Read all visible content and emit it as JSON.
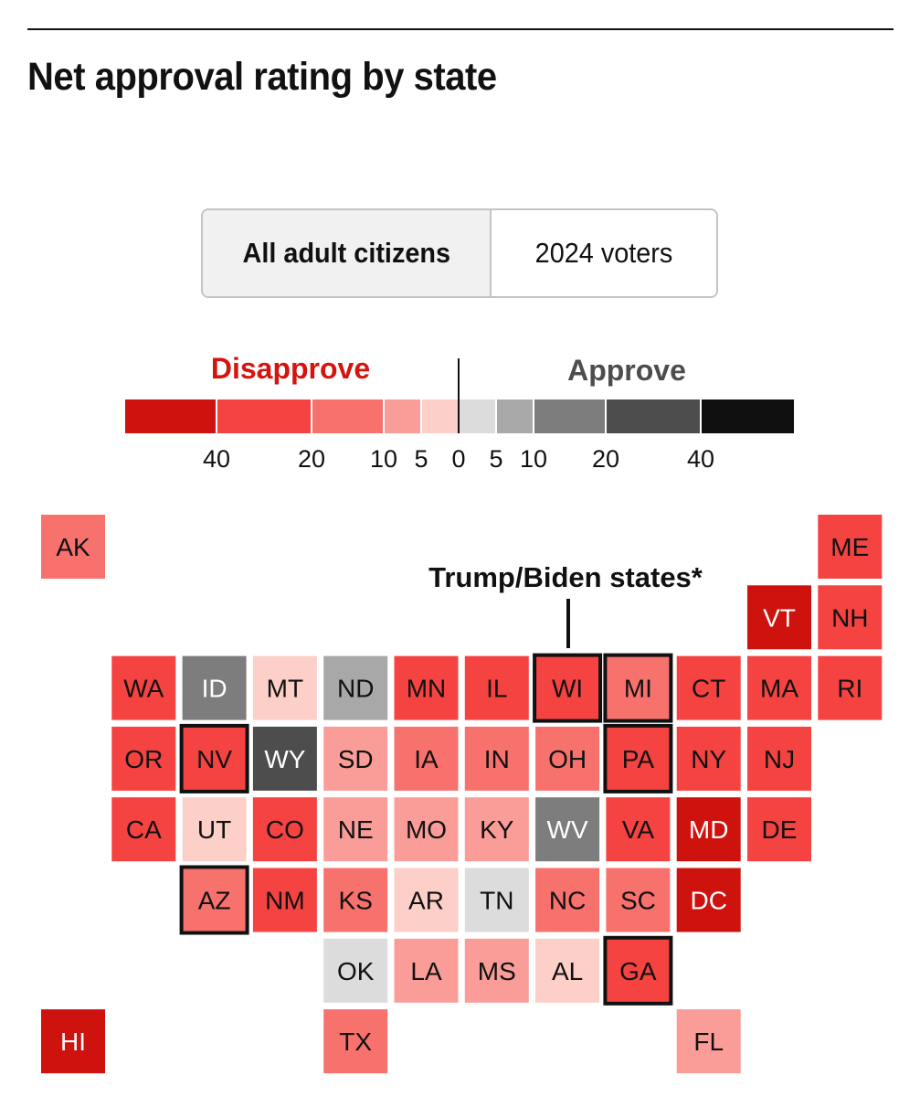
{
  "header": {
    "title": "Net approval rating by state"
  },
  "toggle": {
    "options": [
      {
        "label": "All adult citizens",
        "selected": true
      },
      {
        "label": "2024 voters",
        "selected": false
      }
    ]
  },
  "legend": {
    "disapprove_label": "Disapprove",
    "approve_label": "Approve",
    "disapprove_color": "#d4140f",
    "approve_color": "#4d4d4d",
    "bins": [
      {
        "from": -60,
        "to": -40,
        "color": "#ce120e"
      },
      {
        "from": -40,
        "to": -20,
        "color": "#f44341"
      },
      {
        "from": -20,
        "to": -10,
        "color": "#f7716d"
      },
      {
        "from": -10,
        "to": -5,
        "color": "#fa9d98"
      },
      {
        "from": -5,
        "to": 0,
        "color": "#fccfc9"
      },
      {
        "from": 0,
        "to": 5,
        "color": "#dcdcdc"
      },
      {
        "from": 5,
        "to": 10,
        "color": "#a8a8a8"
      },
      {
        "from": 10,
        "to": 20,
        "color": "#7d7d7d"
      },
      {
        "from": 20,
        "to": 40,
        "color": "#4d4d4d"
      },
      {
        "from": 40,
        "to": 60,
        "color": "#0f0f0f"
      }
    ],
    "ticks": [
      {
        "value": -40,
        "label": "40"
      },
      {
        "value": -20,
        "label": "20"
      },
      {
        "value": -10,
        "label": "10"
      },
      {
        "value": -5,
        "label": "5"
      },
      {
        "value": 0,
        "label": "0"
      },
      {
        "value": 5,
        "label": "5"
      },
      {
        "value": 10,
        "label": "10"
      },
      {
        "value": 20,
        "label": "20"
      },
      {
        "value": 40,
        "label": "40"
      }
    ]
  },
  "annotation": {
    "label": "Trump/Biden states*"
  },
  "chart_data": {
    "type": "heatmap",
    "title": "Net approval rating by state",
    "scale_unit": "net approval (points)",
    "states": [
      {
        "abbr": "AK",
        "row": 0,
        "col": 0,
        "bin": -20,
        "highlight": false
      },
      {
        "abbr": "ME",
        "row": 0,
        "col": 11,
        "bin": -40,
        "highlight": false
      },
      {
        "abbr": "VT",
        "row": 1,
        "col": 10,
        "bin": -60,
        "highlight": false
      },
      {
        "abbr": "NH",
        "row": 1,
        "col": 11,
        "bin": -40,
        "highlight": false
      },
      {
        "abbr": "WA",
        "row": 2,
        "col": 1,
        "bin": -40,
        "highlight": false
      },
      {
        "abbr": "ID",
        "row": 2,
        "col": 2,
        "bin": 10,
        "highlight": false
      },
      {
        "abbr": "MT",
        "row": 2,
        "col": 3,
        "bin": -5,
        "highlight": false
      },
      {
        "abbr": "ND",
        "row": 2,
        "col": 4,
        "bin": 5,
        "highlight": false
      },
      {
        "abbr": "MN",
        "row": 2,
        "col": 5,
        "bin": -40,
        "highlight": false
      },
      {
        "abbr": "IL",
        "row": 2,
        "col": 6,
        "bin": -40,
        "highlight": false
      },
      {
        "abbr": "WI",
        "row": 2,
        "col": 7,
        "bin": -40,
        "highlight": true
      },
      {
        "abbr": "MI",
        "row": 2,
        "col": 8,
        "bin": -20,
        "highlight": true
      },
      {
        "abbr": "CT",
        "row": 2,
        "col": 9,
        "bin": -40,
        "highlight": false
      },
      {
        "abbr": "MA",
        "row": 2,
        "col": 10,
        "bin": -40,
        "highlight": false
      },
      {
        "abbr": "RI",
        "row": 2,
        "col": 11,
        "bin": -40,
        "highlight": false
      },
      {
        "abbr": "OR",
        "row": 3,
        "col": 1,
        "bin": -40,
        "highlight": false
      },
      {
        "abbr": "NV",
        "row": 3,
        "col": 2,
        "bin": -40,
        "highlight": true
      },
      {
        "abbr": "WY",
        "row": 3,
        "col": 3,
        "bin": 20,
        "highlight": false
      },
      {
        "abbr": "SD",
        "row": 3,
        "col": 4,
        "bin": -10,
        "highlight": false
      },
      {
        "abbr": "IA",
        "row": 3,
        "col": 5,
        "bin": -20,
        "highlight": false
      },
      {
        "abbr": "IN",
        "row": 3,
        "col": 6,
        "bin": -20,
        "highlight": false
      },
      {
        "abbr": "OH",
        "row": 3,
        "col": 7,
        "bin": -20,
        "highlight": false
      },
      {
        "abbr": "PA",
        "row": 3,
        "col": 8,
        "bin": -40,
        "highlight": true
      },
      {
        "abbr": "NY",
        "row": 3,
        "col": 9,
        "bin": -40,
        "highlight": false
      },
      {
        "abbr": "NJ",
        "row": 3,
        "col": 10,
        "bin": -40,
        "highlight": false
      },
      {
        "abbr": "CA",
        "row": 4,
        "col": 1,
        "bin": -40,
        "highlight": false
      },
      {
        "abbr": "UT",
        "row": 4,
        "col": 2,
        "bin": -5,
        "highlight": false
      },
      {
        "abbr": "CO",
        "row": 4,
        "col": 3,
        "bin": -40,
        "highlight": false
      },
      {
        "abbr": "NE",
        "row": 4,
        "col": 4,
        "bin": -10,
        "highlight": false
      },
      {
        "abbr": "MO",
        "row": 4,
        "col": 5,
        "bin": -10,
        "highlight": false
      },
      {
        "abbr": "KY",
        "row": 4,
        "col": 6,
        "bin": -10,
        "highlight": false
      },
      {
        "abbr": "WV",
        "row": 4,
        "col": 7,
        "bin": 10,
        "highlight": false
      },
      {
        "abbr": "VA",
        "row": 4,
        "col": 8,
        "bin": -40,
        "highlight": false
      },
      {
        "abbr": "MD",
        "row": 4,
        "col": 9,
        "bin": -60,
        "highlight": false
      },
      {
        "abbr": "DE",
        "row": 4,
        "col": 10,
        "bin": -40,
        "highlight": false
      },
      {
        "abbr": "AZ",
        "row": 5,
        "col": 2,
        "bin": -20,
        "highlight": true
      },
      {
        "abbr": "NM",
        "row": 5,
        "col": 3,
        "bin": -40,
        "highlight": false
      },
      {
        "abbr": "KS",
        "row": 5,
        "col": 4,
        "bin": -20,
        "highlight": false
      },
      {
        "abbr": "AR",
        "row": 5,
        "col": 5,
        "bin": -5,
        "highlight": false
      },
      {
        "abbr": "TN",
        "row": 5,
        "col": 6,
        "bin": 0,
        "highlight": false
      },
      {
        "abbr": "NC",
        "row": 5,
        "col": 7,
        "bin": -20,
        "highlight": false
      },
      {
        "abbr": "SC",
        "row": 5,
        "col": 8,
        "bin": -20,
        "highlight": false
      },
      {
        "abbr": "DC",
        "row": 5,
        "col": 9,
        "bin": -60,
        "highlight": false
      },
      {
        "abbr": "OK",
        "row": 6,
        "col": 4,
        "bin": 0,
        "highlight": false
      },
      {
        "abbr": "LA",
        "row": 6,
        "col": 5,
        "bin": -10,
        "highlight": false
      },
      {
        "abbr": "MS",
        "row": 6,
        "col": 6,
        "bin": -10,
        "highlight": false
      },
      {
        "abbr": "AL",
        "row": 6,
        "col": 7,
        "bin": -5,
        "highlight": false
      },
      {
        "abbr": "GA",
        "row": 6,
        "col": 8,
        "bin": -40,
        "highlight": true
      },
      {
        "abbr": "HI",
        "row": 7,
        "col": 0,
        "bin": -60,
        "highlight": false
      },
      {
        "abbr": "TX",
        "row": 7,
        "col": 4,
        "bin": -20,
        "highlight": false
      },
      {
        "abbr": "FL",
        "row": 7,
        "col": 9,
        "bin": -10,
        "highlight": false
      }
    ]
  }
}
